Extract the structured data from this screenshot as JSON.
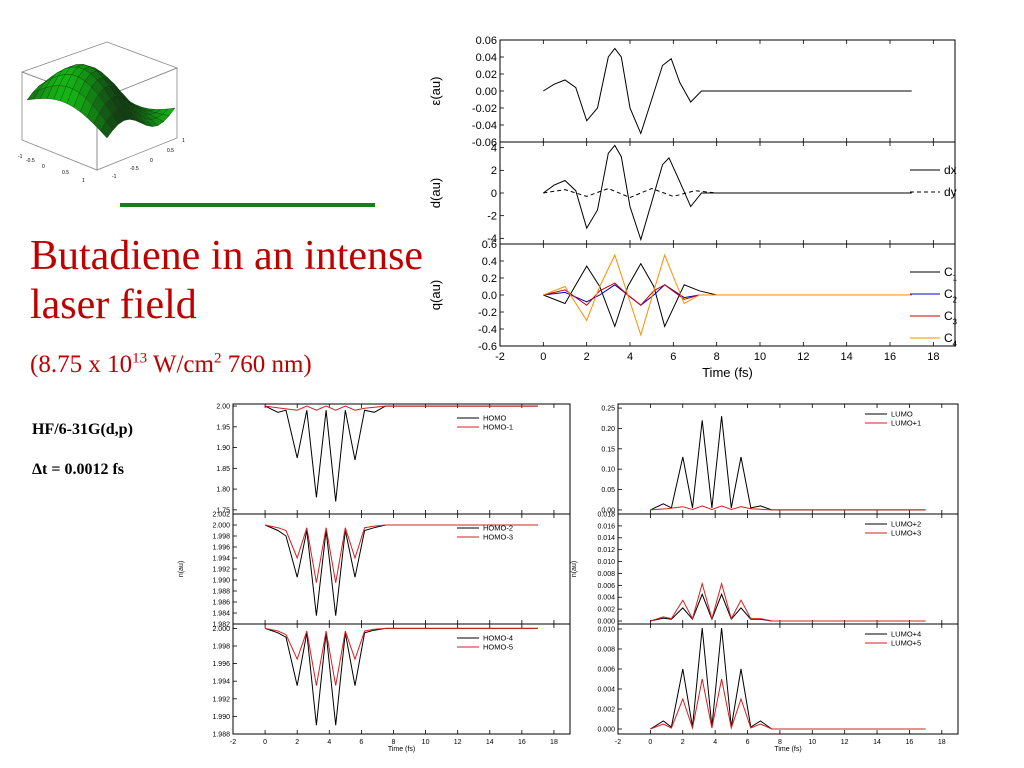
{
  "title": "Butadiene in an intense laser field",
  "subtitle": {
    "prefix": "(8.75 x 10",
    "exp1": "13",
    "mid": " W/cm",
    "exp2": "2",
    "suffix": " 760 nm)"
  },
  "method": "HF/6-31G(d,p)",
  "timestep": "Δt = 0.0012 fs",
  "colors": {
    "title": "#c00000",
    "divider": "#1d7a1d",
    "surface": "#2e9e2e"
  },
  "surface_ticks": [
    "-1",
    "-0.5",
    "0",
    "0.5",
    "1",
    "-1",
    "-0.5",
    "0",
    "0.5",
    "1"
  ],
  "chart_data": [
    {
      "type": "line",
      "title": "",
      "xlabel": "Time (fs)",
      "xlim": [
        -2,
        19
      ],
      "x_ticks": [
        "-2",
        "0",
        "2",
        "4",
        "6",
        "8",
        "10",
        "12",
        "14",
        "16",
        "18"
      ],
      "panels": [
        {
          "ylabel": "ε(au)",
          "ylim": [
            -0.06,
            0.06
          ],
          "y_ticks": [
            "0.06",
            "0.04",
            "0.02",
            "0.00",
            "-0.02",
            "-0.04",
            "-0.06"
          ],
          "series": [
            {
              "color": "#000000",
              "x": [
                0,
                0.5,
                1.0,
                1.5,
                2.0,
                2.5,
                3.0,
                3.3,
                3.6,
                4.0,
                4.5,
                5.0,
                5.5,
                5.9,
                6.3,
                6.8,
                7.3,
                17
              ],
              "y": [
                0,
                0.008,
                0.013,
                0.004,
                -0.035,
                -0.02,
                0.04,
                0.05,
                0.04,
                -0.02,
                -0.05,
                -0.01,
                0.03,
                0.038,
                0.01,
                -0.013,
                0,
                0
              ]
            }
          ]
        },
        {
          "ylabel": "d(au)",
          "ylim": [
            -4.5,
            4.5
          ],
          "y_ticks": [
            "4",
            "2",
            "0",
            "-2",
            "-4"
          ],
          "series": [
            {
              "name": "dx",
              "color": "#000000",
              "dash": "",
              "x": [
                0,
                0.5,
                1.0,
                1.5,
                2.0,
                2.5,
                3.0,
                3.3,
                3.6,
                4.0,
                4.5,
                5.0,
                5.5,
                5.8,
                6.3,
                6.8,
                7.3,
                17
              ],
              "y": [
                0,
                0.7,
                1.1,
                0.2,
                -3.1,
                -1.5,
                3.5,
                4.2,
                3.2,
                -1.2,
                -4.1,
                -0.8,
                2.5,
                3.1,
                1.0,
                -1.2,
                0,
                0
              ]
            },
            {
              "name": "dy",
              "color": "#000000",
              "dash": "4,3",
              "x": [
                0,
                1.0,
                2.0,
                3.0,
                4.0,
                5.0,
                6.0,
                7.0,
                8.0,
                17
              ],
              "y": [
                0,
                0.3,
                -0.3,
                0.4,
                -0.4,
                0.4,
                -0.3,
                0.2,
                0,
                0
              ]
            }
          ]
        },
        {
          "ylabel": "q(au)",
          "ylim": [
            -0.6,
            0.6
          ],
          "y_ticks": [
            "0.6",
            "0.4",
            "0.2",
            "0.0",
            "-0.2",
            "-0.4",
            "-0.6"
          ],
          "series": [
            {
              "name": "C1",
              "color": "#000000",
              "x": [
                0,
                1.0,
                2.0,
                2.6,
                3.3,
                3.9,
                4.5,
                5.1,
                5.6,
                6.5,
                7.2,
                8,
                17
              ],
              "y": [
                0,
                -0.1,
                0.34,
                0.1,
                -0.37,
                0.1,
                0.37,
                0.1,
                -0.37,
                0.12,
                0.05,
                0,
                0
              ]
            },
            {
              "name": "C2",
              "color": "#0000cc",
              "x": [
                0,
                1.0,
                2.0,
                2.6,
                3.3,
                3.9,
                4.5,
                5.1,
                5.6,
                6.5,
                7.2,
                8,
                17
              ],
              "y": [
                0,
                0.03,
                -0.08,
                0,
                0.12,
                0,
                -0.12,
                0,
                0.12,
                -0.03,
                0,
                0,
                0
              ]
            },
            {
              "name": "C3",
              "color": "#cc0000",
              "x": [
                0,
                1.0,
                2.0,
                2.6,
                3.3,
                3.9,
                4.5,
                5.1,
                5.6,
                6.5,
                7.2,
                8,
                17
              ],
              "y": [
                0,
                0.06,
                -0.12,
                0.05,
                0.14,
                0,
                -0.12,
                0.05,
                0.12,
                -0.05,
                0,
                0,
                0
              ]
            },
            {
              "name": "C4",
              "color": "#ff8c00",
              "x": [
                0,
                1.0,
                2.0,
                2.6,
                3.3,
                3.9,
                4.5,
                5.1,
                5.6,
                6.5,
                7.2,
                8,
                17
              ],
              "y": [
                0,
                0.1,
                -0.3,
                0.1,
                0.47,
                0,
                -0.47,
                0.05,
                0.47,
                -0.1,
                0,
                0,
                0
              ]
            }
          ]
        }
      ]
    },
    {
      "type": "line",
      "xlabel": "Time (fs)",
      "ylabel": "n(au)",
      "xlim": [
        -2,
        19
      ],
      "x_ticks": [
        "-2",
        "0",
        "2",
        "4",
        "6",
        "8",
        "10",
        "12",
        "14",
        "16",
        "18"
      ],
      "panels": [
        {
          "ylim": [
            1.74,
            2.005
          ],
          "y_ticks": [
            "2.00",
            "1.95",
            "1.90",
            "1.85",
            "1.80",
            "1.75"
          ],
          "series": [
            {
              "name": "HOMO",
              "color": "#000000",
              "x": [
                0,
                0.8,
                1.3,
                2.0,
                2.6,
                3.2,
                3.8,
                4.4,
                5.0,
                5.6,
                6.2,
                6.8,
                7.5,
                17
              ],
              "y": [
                2.0,
                1.985,
                1.99,
                1.875,
                1.99,
                1.78,
                1.99,
                1.77,
                1.99,
                1.87,
                1.99,
                1.985,
                2.0,
                2.0
              ]
            },
            {
              "name": "HOMO-1",
              "color": "#d62020",
              "x": [
                0,
                1,
                2,
                2.6,
                3.2,
                3.8,
                4.4,
                5.0,
                5.6,
                6.2,
                7.5,
                17
              ],
              "y": [
                2.0,
                1.995,
                1.99,
                2.0,
                1.99,
                2.0,
                1.99,
                2.0,
                1.99,
                1.995,
                2.0,
                2.0
              ]
            }
          ]
        },
        {
          "ylim": [
            1.982,
            2.002
          ],
          "y_ticks": [
            "2.002",
            "2.000",
            "1.998",
            "1.996",
            "1.994",
            "1.992",
            "1.990",
            "1.988",
            "1.986",
            "1.984",
            "1.982"
          ],
          "series": [
            {
              "name": "HOMO-2",
              "color": "#000000",
              "x": [
                0,
                0.8,
                1.3,
                2.0,
                2.6,
                3.2,
                3.8,
                4.4,
                5.0,
                5.6,
                6.2,
                6.8,
                7.5,
                17
              ],
              "y": [
                2.0,
                1.999,
                1.998,
                1.9905,
                1.999,
                1.9835,
                1.999,
                1.9835,
                1.999,
                1.9905,
                1.999,
                1.9995,
                2.0,
                2.0
              ]
            },
            {
              "name": "HOMO-3",
              "color": "#d62020",
              "x": [
                0,
                0.8,
                1.3,
                2.0,
                2.6,
                3.2,
                3.8,
                4.4,
                5.0,
                5.6,
                6.2,
                6.8,
                7.5,
                17
              ],
              "y": [
                2.0,
                1.9995,
                1.999,
                1.994,
                1.9995,
                1.9895,
                1.9995,
                1.9895,
                1.9995,
                1.994,
                1.9995,
                1.9998,
                2.0,
                2.0
              ]
            }
          ]
        },
        {
          "ylim": [
            1.988,
            2.0005
          ],
          "y_ticks": [
            "2.000",
            "1.998",
            "1.996",
            "1.994",
            "1.992",
            "1.990",
            "1.988"
          ],
          "series": [
            {
              "name": "HOMO-4",
              "color": "#000000",
              "x": [
                0,
                0.8,
                1.3,
                2.0,
                2.6,
                3.2,
                3.8,
                4.4,
                5.0,
                5.6,
                6.2,
                6.8,
                7.5,
                17
              ],
              "y": [
                2.0,
                1.9995,
                1.999,
                1.9935,
                1.9995,
                1.989,
                1.9995,
                1.989,
                1.9995,
                1.9935,
                1.9995,
                1.9998,
                2.0,
                2.0
              ]
            },
            {
              "name": "HOMO-5",
              "color": "#d62020",
              "x": [
                0,
                0.8,
                1.3,
                2.0,
                2.6,
                3.2,
                3.8,
                4.4,
                5.0,
                5.6,
                6.2,
                6.8,
                7.5,
                17
              ],
              "y": [
                2.0,
                1.9997,
                1.9993,
                1.9965,
                1.9997,
                1.9935,
                1.9997,
                1.9935,
                1.9997,
                1.9965,
                1.9997,
                1.9999,
                2.0,
                2.0
              ]
            }
          ]
        }
      ]
    },
    {
      "type": "line",
      "xlabel": "Time (fs)",
      "ylabel": "n(au)",
      "xlim": [
        -2,
        19
      ],
      "x_ticks": [
        "-2",
        "0",
        "2",
        "4",
        "6",
        "8",
        "10",
        "12",
        "14",
        "16",
        "18"
      ],
      "panels": [
        {
          "ylim": [
            -0.01,
            0.26
          ],
          "y_ticks": [
            "0.25",
            "0.20",
            "0.15",
            "0.10",
            "0.05",
            "0.00"
          ],
          "series": [
            {
              "name": "LUMO",
              "color": "#000000",
              "x": [
                0,
                0.8,
                1.3,
                2.0,
                2.6,
                3.2,
                3.8,
                4.4,
                5.0,
                5.6,
                6.2,
                6.8,
                7.5,
                17
              ],
              "y": [
                0,
                0.015,
                0.005,
                0.13,
                0.005,
                0.22,
                0.005,
                0.23,
                0.005,
                0.13,
                0.005,
                0.01,
                0,
                0
              ]
            },
            {
              "name": "LUMO+1",
              "color": "#d62020",
              "x": [
                0,
                1,
                2,
                2.6,
                3.2,
                3.8,
                4.4,
                5.0,
                5.6,
                6.2,
                7.5,
                17
              ],
              "y": [
                0,
                0.003,
                0.008,
                0.001,
                0.01,
                0.001,
                0.01,
                0.001,
                0.008,
                0.003,
                0,
                0
              ]
            }
          ]
        },
        {
          "ylim": [
            -0.0005,
            0.018
          ],
          "y_ticks": [
            "0.018",
            "0.016",
            "0.014",
            "0.012",
            "0.010",
            "0.008",
            "0.006",
            "0.004",
            "0.002",
            "0.000"
          ],
          "series": [
            {
              "name": "LUMO+2",
              "color": "#000000",
              "x": [
                0,
                0.8,
                1.3,
                2.0,
                2.6,
                3.2,
                3.8,
                4.4,
                5.0,
                5.6,
                6.2,
                6.8,
                7.5,
                17
              ],
              "y": [
                0,
                0.0005,
                0.0003,
                0.0022,
                0.0003,
                0.0045,
                0.0003,
                0.0045,
                0.0003,
                0.0022,
                0.0003,
                0.0003,
                0,
                0
              ]
            },
            {
              "name": "LUMO+3",
              "color": "#d62020",
              "x": [
                0,
                0.8,
                1.3,
                2.0,
                2.6,
                3.2,
                3.8,
                4.4,
                5.0,
                5.6,
                6.2,
                6.8,
                7.5,
                17
              ],
              "y": [
                0,
                0.0007,
                0.0004,
                0.0035,
                0.0004,
                0.0063,
                0.0004,
                0.0063,
                0.0004,
                0.0035,
                0.0004,
                0.0004,
                0,
                0
              ]
            }
          ]
        },
        {
          "ylim": [
            -0.0005,
            0.0105
          ],
          "y_ticks": [
            "0.010",
            "0.008",
            "0.006",
            "0.004",
            "0.002",
            "0.000"
          ],
          "series": [
            {
              "name": "LUMO+4",
              "color": "#000000",
              "x": [
                0,
                0.8,
                1.3,
                2.0,
                2.6,
                3.2,
                3.8,
                4.4,
                5.0,
                5.6,
                6.2,
                6.8,
                7.5,
                17
              ],
              "y": [
                0,
                0.0008,
                0.0002,
                0.006,
                0.0002,
                0.0101,
                0.0002,
                0.0101,
                0.0002,
                0.006,
                0.0002,
                0.0008,
                0,
                0
              ]
            },
            {
              "name": "LUMO+5",
              "color": "#d62020",
              "x": [
                0,
                0.8,
                1.3,
                2.0,
                2.6,
                3.2,
                3.8,
                4.4,
                5.0,
                5.6,
                6.2,
                6.8,
                7.5,
                17
              ],
              "y": [
                0,
                0.0005,
                0.0001,
                0.003,
                0.0001,
                0.005,
                0.0001,
                0.005,
                0.0001,
                0.003,
                0.0001,
                0.0005,
                0,
                0
              ]
            }
          ]
        }
      ]
    }
  ]
}
